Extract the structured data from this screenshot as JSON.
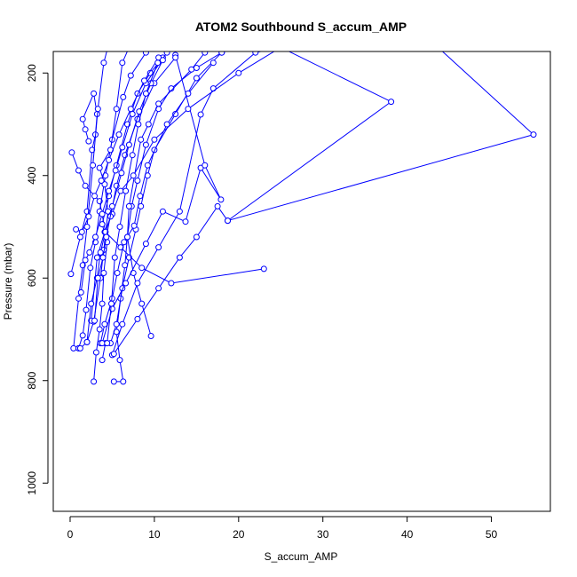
{
  "chart_data": {
    "type": "line",
    "title": "ATOM2 Southbound S_accum_AMP",
    "xlabel": "S_accum_AMP",
    "ylabel": "Pressure (mbar)",
    "xlim": [
      -2,
      57
    ],
    "ylim": [
      1055,
      158
    ],
    "y_reversed": true,
    "x_ticks": [
      0,
      10,
      20,
      30,
      40,
      50
    ],
    "y_ticks": [
      200,
      400,
      600,
      800,
      1000
    ],
    "grid": false,
    "colors": {
      "series": "#0000ff",
      "axes": "#000000"
    },
    "series": [
      {
        "points": [
          [
            0.2,
            355
          ],
          [
            1.0,
            390
          ],
          [
            1.8,
            420
          ],
          [
            3.5,
            450
          ],
          [
            4.2,
            510
          ],
          [
            6.0,
            540
          ],
          [
            8.5,
            580
          ],
          [
            12.0,
            610
          ],
          [
            23.0,
            582
          ]
        ]
      },
      {
        "points": [
          [
            0.1,
            592
          ],
          [
            1.2,
            520
          ],
          [
            2.0,
            470
          ],
          [
            2.6,
            350
          ],
          [
            3.0,
            320
          ],
          [
            3.2,
            280
          ],
          [
            2.8,
            240
          ],
          [
            1.5,
            290
          ],
          [
            1.8,
            310
          ],
          [
            2.2,
            333
          ]
        ]
      },
      {
        "points": [
          [
            0.4,
            737
          ],
          [
            1.0,
            640
          ],
          [
            1.5,
            575
          ],
          [
            2.0,
            500
          ],
          [
            2.7,
            380
          ],
          [
            3.3,
            270
          ],
          [
            4.0,
            180
          ],
          [
            4.8,
            130
          ]
        ]
      },
      {
        "points": [
          [
            1.0,
            737
          ],
          [
            1.5,
            712
          ],
          [
            1.9,
            662
          ],
          [
            2.4,
            580
          ],
          [
            3.0,
            530
          ],
          [
            3.5,
            470
          ],
          [
            4.2,
            400
          ],
          [
            5.0,
            330
          ],
          [
            6.3,
            247
          ],
          [
            7.2,
            205
          ],
          [
            9.0,
            160
          ]
        ]
      },
      {
        "points": [
          [
            1.2,
            737
          ],
          [
            2.0,
            725
          ],
          [
            2.8,
            685
          ],
          [
            3.6,
            600
          ],
          [
            4.0,
            545
          ],
          [
            4.5,
            470
          ],
          [
            4.1,
            417
          ],
          [
            3.5,
            385
          ],
          [
            4.8,
            350
          ],
          [
            5.5,
            270
          ],
          [
            6.2,
            180
          ],
          [
            7.0,
            150
          ]
        ]
      },
      {
        "points": [
          [
            2.8,
            802
          ],
          [
            3.1,
            745
          ],
          [
            3.5,
            700
          ],
          [
            3.8,
            650
          ],
          [
            4.0,
            590
          ],
          [
            4.4,
            530
          ],
          [
            3.8,
            495
          ],
          [
            4.6,
            440
          ],
          [
            5.5,
            380
          ],
          [
            6.8,
            300
          ],
          [
            8.0,
            240
          ],
          [
            9.5,
            200
          ],
          [
            11.0,
            170
          ]
        ]
      },
      {
        "points": [
          [
            5.2,
            802
          ],
          [
            6.3,
            802
          ],
          [
            5.9,
            760
          ],
          [
            5.5,
            705
          ],
          [
            6.0,
            640
          ],
          [
            6.5,
            575
          ],
          [
            6.8,
            520
          ],
          [
            7.3,
            460
          ],
          [
            8.0,
            410
          ],
          [
            9.0,
            340
          ],
          [
            10.5,
            270
          ],
          [
            12.0,
            230
          ],
          [
            15.0,
            190
          ],
          [
            18.0,
            160
          ]
        ]
      },
      {
        "points": [
          [
            3.8,
            760
          ],
          [
            4.2,
            727
          ],
          [
            4.8,
            727
          ],
          [
            5.5,
            690
          ],
          [
            6.2,
            620
          ],
          [
            7.0,
            560
          ],
          [
            7.8,
            505
          ],
          [
            8.4,
            460
          ],
          [
            9.2,
            400
          ],
          [
            10.0,
            350
          ],
          [
            12.5,
            280
          ],
          [
            15.0,
            210
          ],
          [
            18.0,
            160
          ]
        ]
      },
      {
        "points": [
          [
            3.6,
            727
          ],
          [
            4.1,
            690
          ],
          [
            5.0,
            640
          ],
          [
            5.6,
            590
          ],
          [
            6.4,
            530
          ],
          [
            7.6,
            498
          ],
          [
            8.3,
            440
          ],
          [
            9.2,
            380
          ],
          [
            11.5,
            300
          ],
          [
            14.0,
            240
          ],
          [
            17.0,
            180
          ]
        ]
      },
      {
        "points": [
          [
            9.6,
            713
          ],
          [
            8.5,
            650
          ],
          [
            7.5,
            590
          ],
          [
            6.8,
            520
          ],
          [
            7.0,
            460
          ],
          [
            8.4,
            330
          ],
          [
            9.3,
            300
          ],
          [
            10.5,
            260
          ],
          [
            14.4,
            193
          ],
          [
            16.0,
            160
          ]
        ]
      },
      {
        "points": [
          [
            3.8,
            727
          ],
          [
            5.0,
            660
          ],
          [
            6.6,
            610
          ],
          [
            9.0,
            533
          ],
          [
            11.0,
            470
          ],
          [
            13.7,
            490
          ],
          [
            15.5,
            385
          ],
          [
            17.9,
            447
          ],
          [
            16.0,
            380
          ],
          [
            12.5,
            165
          ]
        ]
      },
      {
        "points": [
          [
            5.0,
            750
          ],
          [
            6.2,
            690
          ],
          [
            8.0,
            610
          ],
          [
            10.5,
            540
          ],
          [
            13.0,
            470
          ],
          [
            15.5,
            281
          ],
          [
            17.0,
            230
          ],
          [
            22.0,
            160
          ],
          [
            25.0,
            150
          ]
        ]
      },
      {
        "points": [
          [
            5.2,
            748
          ],
          [
            8.0,
            680
          ],
          [
            10.5,
            620
          ],
          [
            13.0,
            560
          ],
          [
            15.0,
            520
          ],
          [
            17.5,
            460
          ],
          [
            18.7,
            488
          ],
          [
            55.0,
            320
          ],
          [
            43.0,
            140
          ]
        ]
      },
      {
        "points": [
          [
            2.5,
            683
          ],
          [
            3.2,
            560
          ],
          [
            4.1,
            510
          ],
          [
            5.0,
            475
          ],
          [
            6.0,
            430
          ],
          [
            7.5,
            400
          ],
          [
            10.0,
            330
          ],
          [
            14.0,
            270
          ],
          [
            20.0,
            200
          ],
          [
            25.0,
            150
          ],
          [
            38.1,
            256
          ],
          [
            18.7,
            488
          ]
        ]
      },
      {
        "points": [
          [
            2.0,
            725
          ],
          [
            2.5,
            650
          ],
          [
            3.2,
            600
          ],
          [
            3.6,
            550
          ],
          [
            4.2,
            510
          ],
          [
            4.8,
            480
          ],
          [
            5.5,
            420
          ],
          [
            6.5,
            360
          ],
          [
            8.0,
            290
          ],
          [
            10.0,
            220
          ],
          [
            12.5,
            170
          ]
        ]
      },
      {
        "points": [
          [
            1.3,
            628
          ],
          [
            1.8,
            565
          ],
          [
            2.3,
            550
          ],
          [
            3.0,
            520
          ],
          [
            3.8,
            475
          ],
          [
            4.6,
            430
          ],
          [
            5.4,
            390
          ],
          [
            6.2,
            345
          ],
          [
            7.4,
            280
          ],
          [
            9.0,
            220
          ],
          [
            11.5,
            160
          ]
        ]
      },
      {
        "points": [
          [
            0.7,
            505
          ],
          [
            1.4,
            510
          ],
          [
            2.2,
            480
          ],
          [
            2.9,
            440
          ],
          [
            3.7,
            410
          ],
          [
            4.6,
            370
          ],
          [
            5.8,
            320
          ],
          [
            7.2,
            270
          ],
          [
            8.8,
            215
          ],
          [
            10.5,
            170
          ]
        ]
      },
      {
        "points": [
          [
            2.9,
            683
          ],
          [
            3.3,
            600
          ],
          [
            3.9,
            560
          ],
          [
            4.3,
            520
          ],
          [
            5.0,
            460
          ],
          [
            6.1,
            395
          ],
          [
            7.0,
            340
          ],
          [
            8.2,
            275
          ],
          [
            9.6,
            220
          ],
          [
            11.0,
            175
          ]
        ]
      },
      {
        "points": [
          [
            4.4,
            727
          ],
          [
            4.9,
            650
          ],
          [
            5.3,
            560
          ],
          [
            5.9,
            500
          ],
          [
            6.6,
            430
          ],
          [
            7.4,
            360
          ],
          [
            8.1,
            300
          ],
          [
            9.0,
            240
          ],
          [
            10.4,
            180
          ]
        ]
      }
    ]
  }
}
